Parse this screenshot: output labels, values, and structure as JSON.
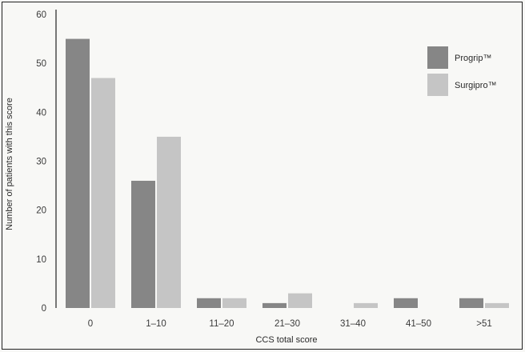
{
  "chart_data": {
    "type": "bar",
    "categories": [
      "0",
      "1–10",
      "11–20",
      "21–30",
      "31–40",
      "41–50",
      ">51"
    ],
    "series": [
      {
        "name": "Progrip™",
        "values": [
          55,
          26,
          2,
          1,
          0,
          2,
          2
        ],
        "color": "#868686"
      },
      {
        "name": "Surgipro™",
        "values": [
          47,
          35,
          2,
          3,
          1,
          0,
          1
        ],
        "color": "#c5c5c5"
      }
    ],
    "xlabel": "CCS total score",
    "ylabel": "Number of patients with this score",
    "ylim": [
      0,
      60
    ],
    "yticks": [
      "0",
      "10",
      "20",
      "30",
      "40",
      "50",
      "60"
    ],
    "grid": false,
    "legend": "top-right"
  }
}
